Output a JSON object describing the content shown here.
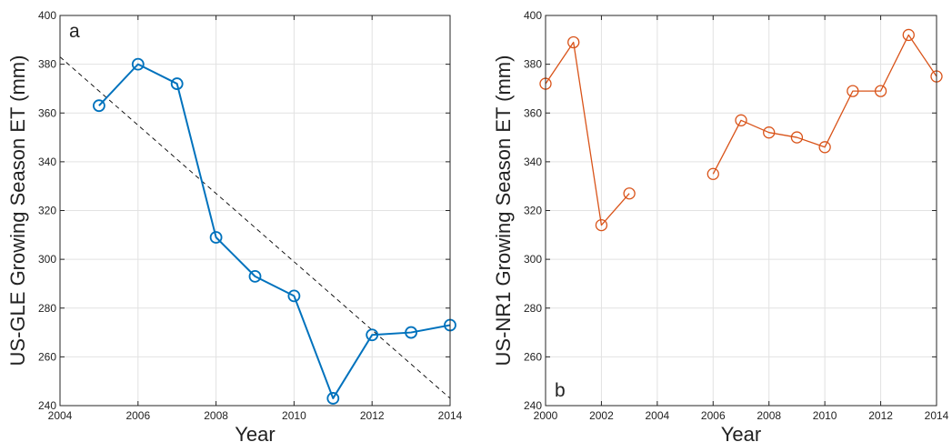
{
  "chart_data": [
    {
      "type": "line",
      "panel_label": "a",
      "xlabel": "Year",
      "ylabel": "US-GLE Growing Season ET (mm)",
      "xlim": [
        2004,
        2014
      ],
      "ylim": [
        240,
        400
      ],
      "x_ticks": [
        2004,
        2006,
        2008,
        2010,
        2012,
        2014
      ],
      "y_ticks": [
        240,
        260,
        280,
        300,
        320,
        340,
        360,
        380,
        400
      ],
      "grid": true,
      "color": "#0072BD",
      "series": [
        {
          "x": [
            2005,
            2006,
            2007,
            2008,
            2009,
            2010,
            2011,
            2012,
            2013,
            2014
          ],
          "y": [
            363,
            380,
            372,
            309,
            293,
            285,
            243,
            269,
            270,
            273
          ]
        }
      ],
      "trendline": {
        "x": [
          2004,
          2014
        ],
        "y": [
          383,
          243
        ],
        "color": "#000000",
        "style": "dashed"
      }
    },
    {
      "type": "line",
      "panel_label": "b",
      "xlabel": "Year",
      "ylabel": "US-NR1 Growing Season ET (mm)",
      "xlim": [
        2000,
        2014
      ],
      "ylim": [
        240,
        400
      ],
      "x_ticks": [
        2000,
        2002,
        2004,
        2006,
        2008,
        2010,
        2012,
        2014
      ],
      "y_ticks": [
        240,
        260,
        280,
        300,
        320,
        340,
        360,
        380,
        400
      ],
      "grid": true,
      "color": "#D95319",
      "series": [
        {
          "x": [
            2000,
            2001,
            2002,
            2003,
            2004,
            2005,
            2006,
            2007,
            2008,
            2009,
            2010,
            2011,
            2012,
            2013,
            2014
          ],
          "y": [
            372,
            389,
            314,
            327,
            null,
            null,
            335,
            357,
            352,
            350,
            346,
            369,
            369,
            392,
            375
          ]
        }
      ]
    }
  ]
}
